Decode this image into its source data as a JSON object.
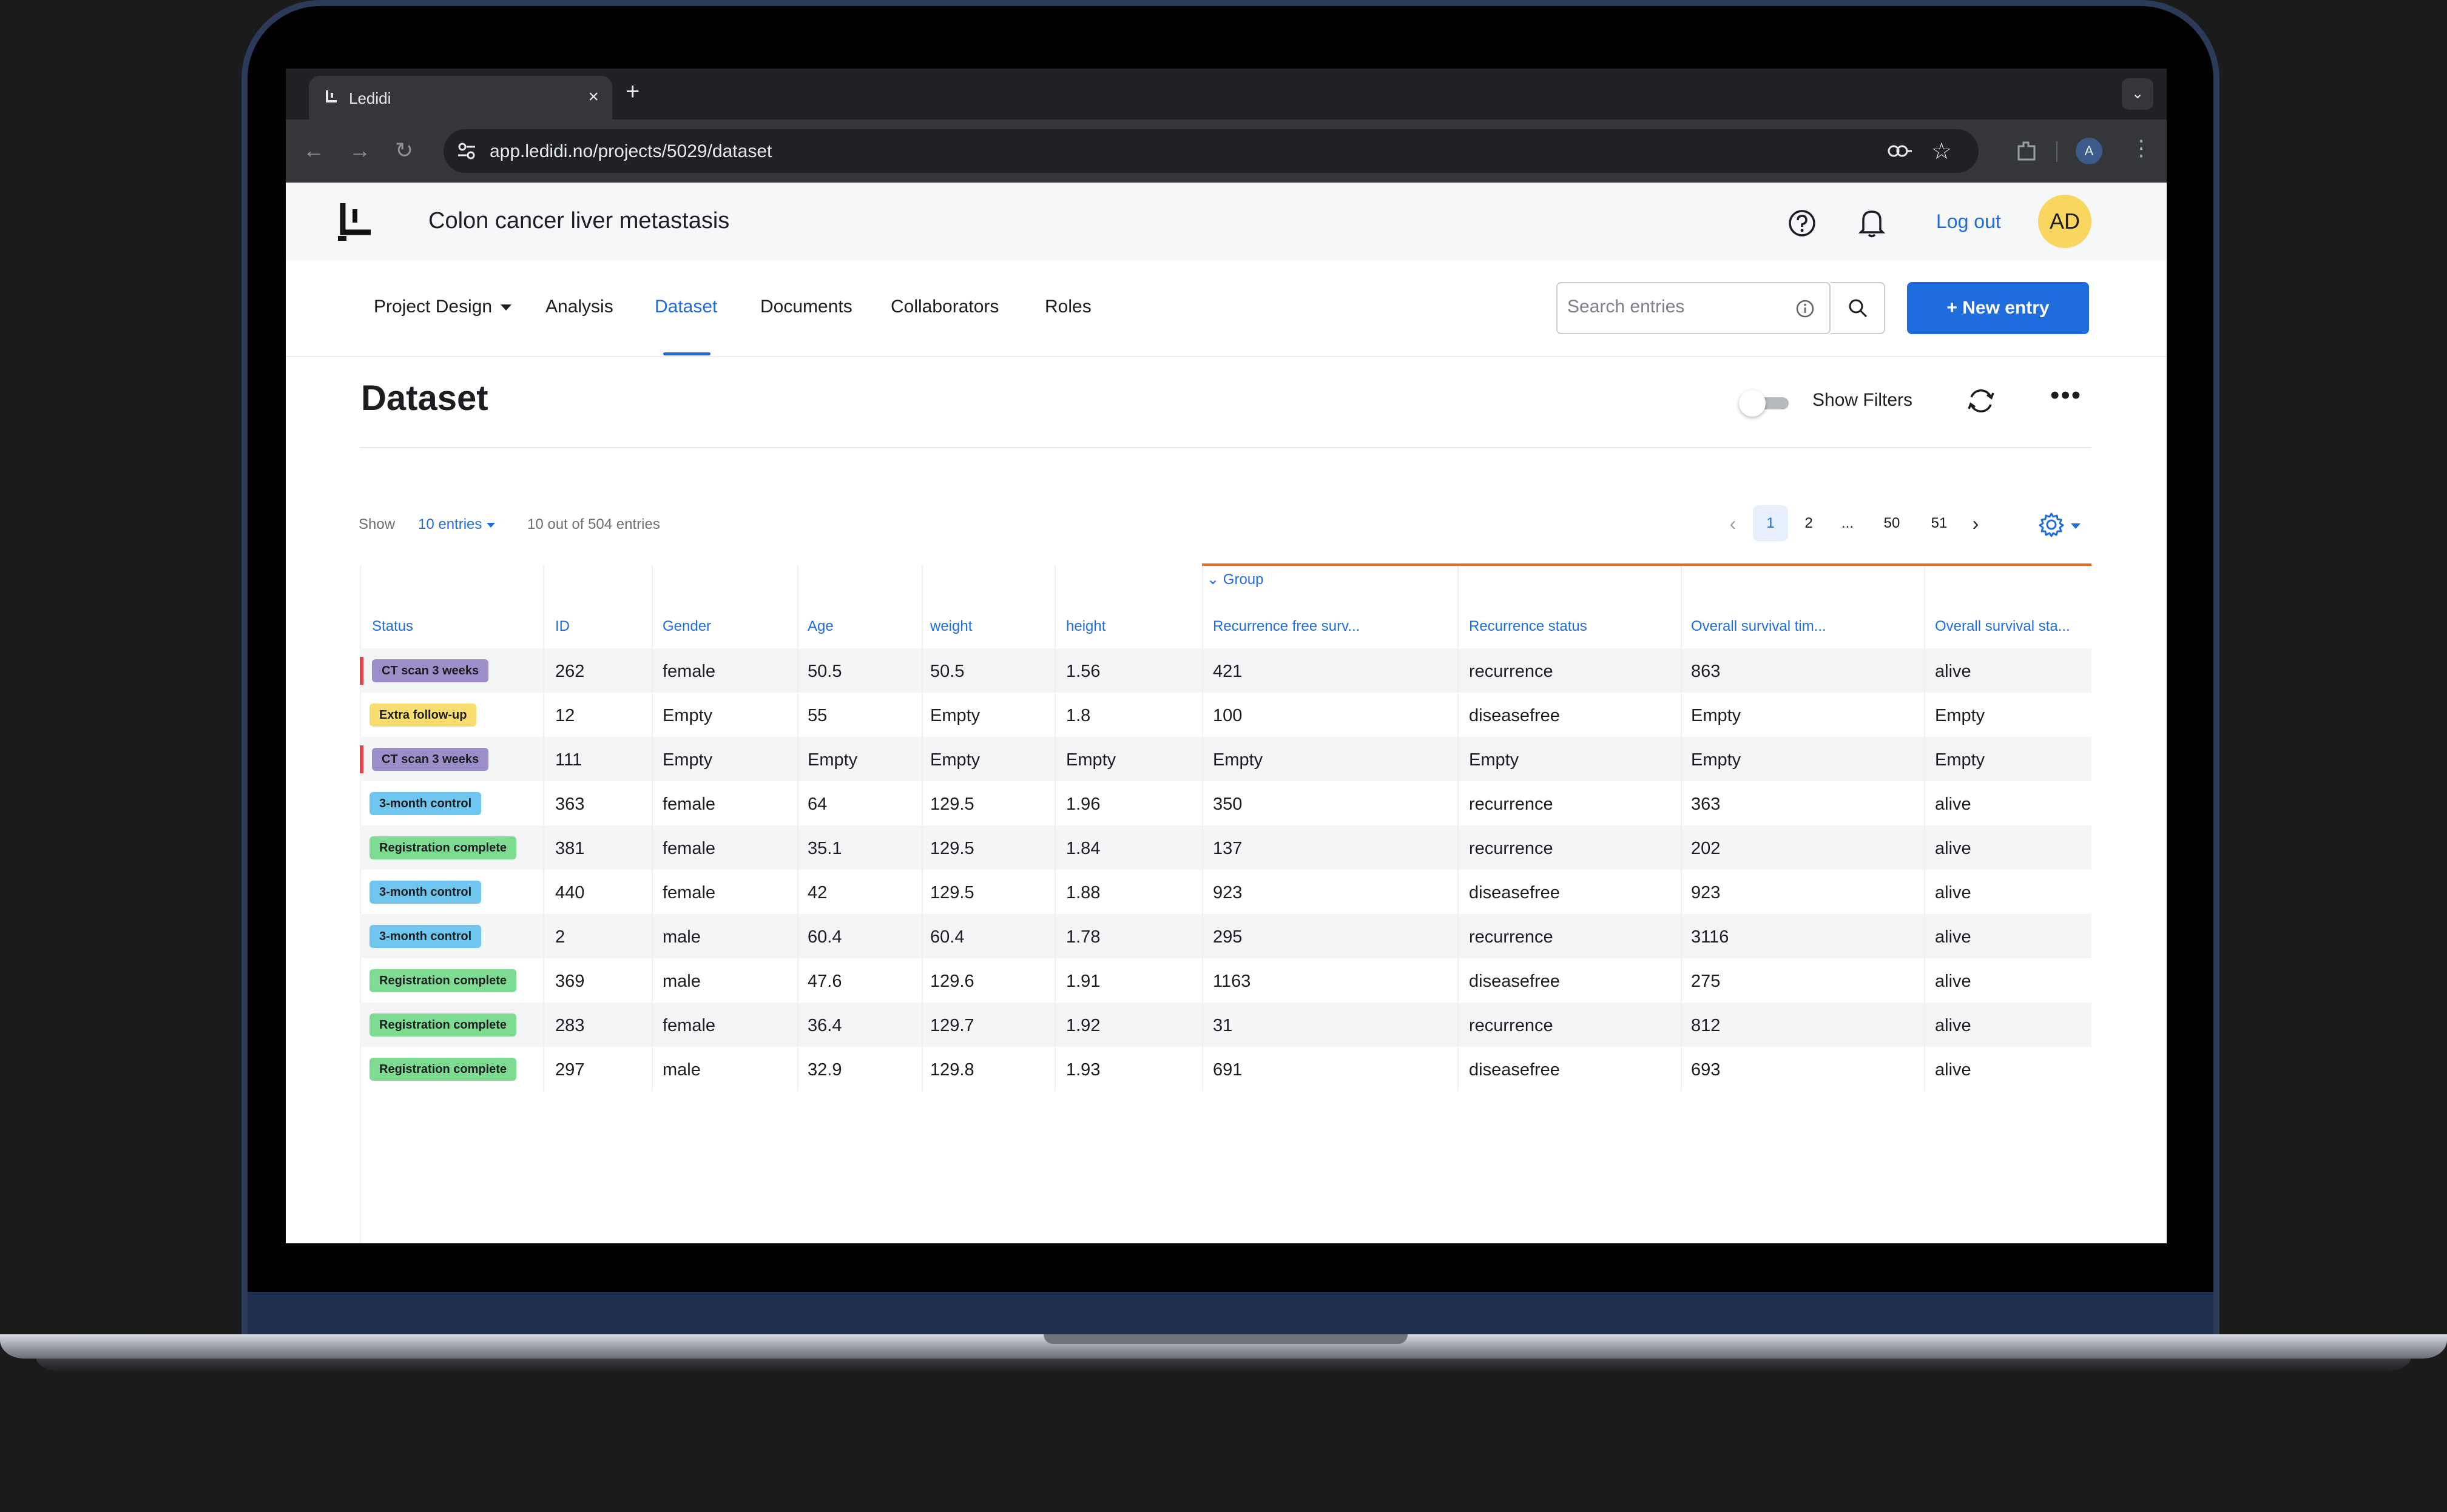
{
  "browser": {
    "tab_title": "Ledidi",
    "new_tab_symbol": "+",
    "close_symbol": "×",
    "url": "app.ledidi.no/projects/5029/dataset",
    "profile_initial": "A"
  },
  "header": {
    "project_title": "Colon cancer liver metastasis",
    "logout_label": "Log out",
    "avatar_initials": "AD"
  },
  "nav": {
    "items": [
      {
        "label": "Project Design"
      },
      {
        "label": "Analysis"
      },
      {
        "label": "Dataset"
      },
      {
        "label": "Documents"
      },
      {
        "label": "Collaborators"
      },
      {
        "label": "Roles"
      }
    ],
    "active": "Dataset",
    "search_placeholder": "Search entries",
    "new_entry_label": "+ New entry"
  },
  "dataset": {
    "title": "Dataset",
    "show_filters_label": "Show Filters",
    "more_symbol": "•••",
    "show_label": "Show",
    "entries_select": "10 entries",
    "count_text": "10 out of 504 entries",
    "pagination": [
      "1",
      "2",
      "...",
      "50",
      "51"
    ],
    "current_page": "1"
  },
  "table": {
    "group_label": "Group",
    "headers": [
      "Status",
      "ID",
      "Gender",
      "Age",
      "weight",
      "height",
      "Recurrence free surv...",
      "Recurrence status",
      "Overall survival tim...",
      "Overall survival sta..."
    ],
    "rows": [
      {
        "status": "CT scan 3 weeks",
        "status_color": "#9b8ec9",
        "flag": true,
        "cells": [
          "262",
          "female",
          "50.5",
          "50.5",
          "1.56",
          "421",
          "recurrence",
          "863",
          "alive"
        ]
      },
      {
        "status": "Extra follow-up",
        "status_color": "#f9de6f",
        "flag": false,
        "cells": [
          "12",
          "Empty",
          "55",
          "Empty",
          "1.8",
          "100",
          "diseasefree",
          "Empty",
          "Empty"
        ]
      },
      {
        "status": "CT scan 3 weeks",
        "status_color": "#9b8ec9",
        "flag": true,
        "cells": [
          "111",
          "Empty",
          "Empty",
          "Empty",
          "Empty",
          "Empty",
          "Empty",
          "Empty",
          "Empty"
        ]
      },
      {
        "status": "3-month control",
        "status_color": "#6ec6ef",
        "flag": false,
        "cells": [
          "363",
          "female",
          "64",
          "129.5",
          "1.96",
          "350",
          "recurrence",
          "363",
          "alive"
        ]
      },
      {
        "status": "Registration complete",
        "status_color": "#7ddc92",
        "flag": false,
        "cells": [
          "381",
          "female",
          "35.1",
          "129.5",
          "1.84",
          "137",
          "recurrence",
          "202",
          "alive"
        ]
      },
      {
        "status": "3-month control",
        "status_color": "#6ec6ef",
        "flag": false,
        "cells": [
          "440",
          "female",
          "42",
          "129.5",
          "1.88",
          "923",
          "diseasefree",
          "923",
          "alive"
        ]
      },
      {
        "status": "3-month control",
        "status_color": "#6ec6ef",
        "flag": false,
        "cells": [
          "2",
          "male",
          "60.4",
          "60.4",
          "1.78",
          "295",
          "recurrence",
          "3116",
          "alive"
        ]
      },
      {
        "status": "Registration complete",
        "status_color": "#7ddc92",
        "flag": false,
        "cells": [
          "369",
          "male",
          "47.6",
          "129.6",
          "1.91",
          "1163",
          "diseasefree",
          "275",
          "alive"
        ]
      },
      {
        "status": "Registration complete",
        "status_color": "#7ddc92",
        "flag": false,
        "cells": [
          "283",
          "female",
          "36.4",
          "129.7",
          "1.92",
          "31",
          "recurrence",
          "812",
          "alive"
        ]
      },
      {
        "status": "Registration complete",
        "status_color": "#7ddc92",
        "flag": false,
        "cells": [
          "297",
          "male",
          "32.9",
          "129.8",
          "1.93",
          "691",
          "diseasefree",
          "693",
          "alive"
        ]
      }
    ]
  },
  "colors": {
    "accent": "#1f6ddc",
    "group_line": "#f06a2c",
    "flag": "#e3424b"
  }
}
